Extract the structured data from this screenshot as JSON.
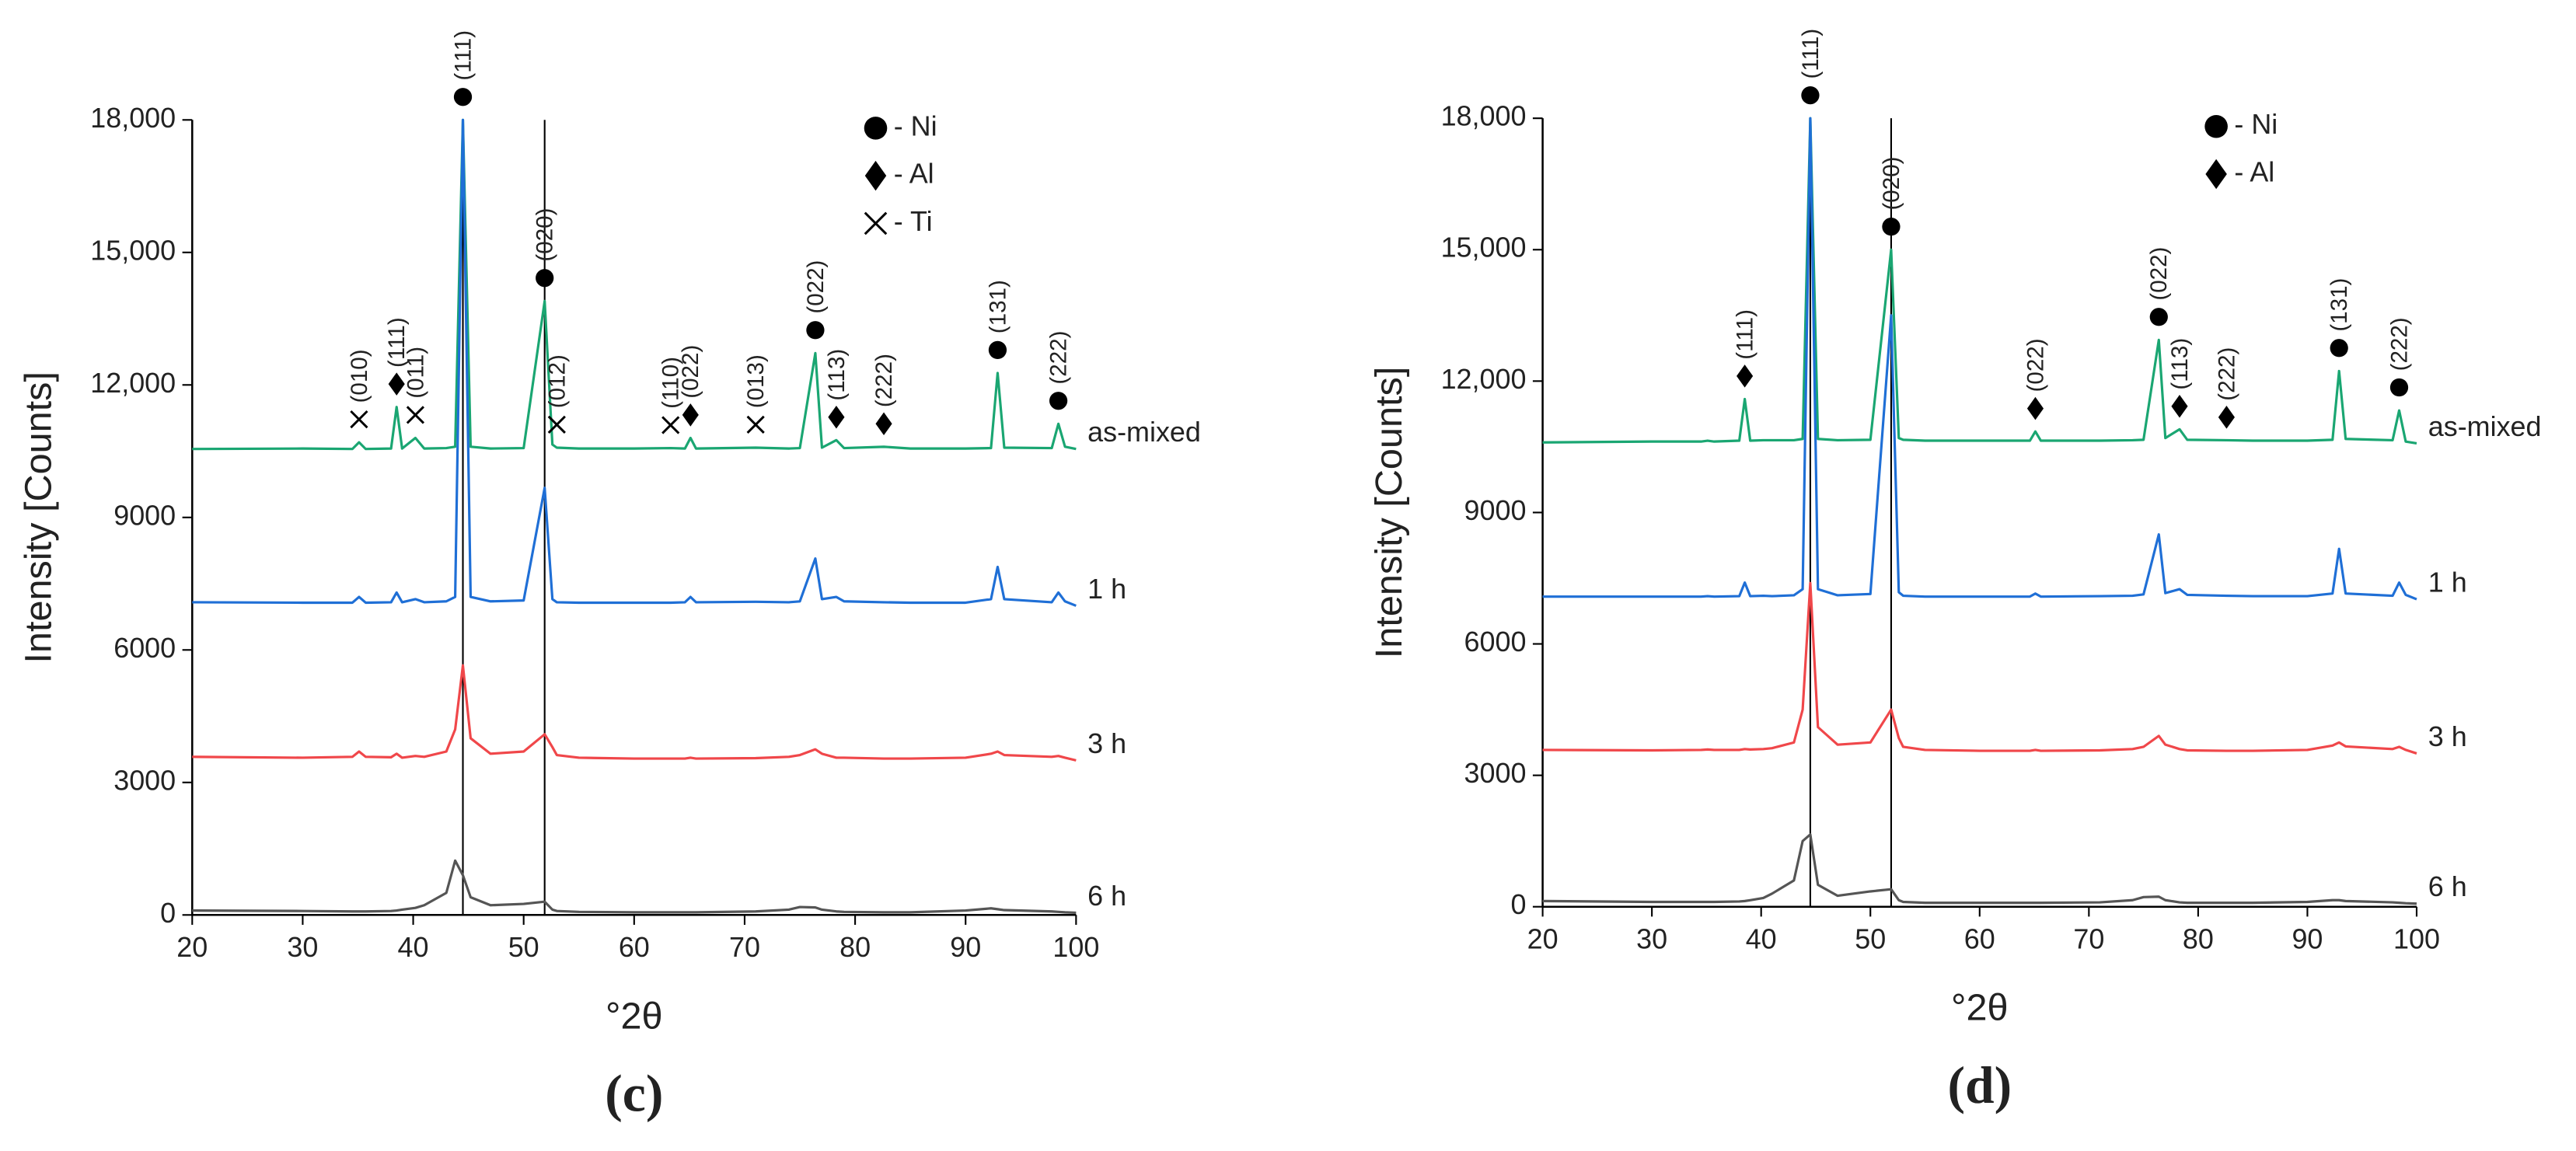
{
  "chart_data": [
    {
      "type": "line",
      "caption": "(c)",
      "xlabel": "°2θ",
      "ylabel": "Intensity [Counts]",
      "xlim": [
        20,
        100
      ],
      "xticks": [
        20,
        30,
        40,
        50,
        60,
        70,
        80,
        90,
        100
      ],
      "ylim": [
        0,
        18000
      ],
      "yticks": [
        0,
        3000,
        6000,
        9000,
        {
          "value": 12000,
          "label": "12,000"
        },
        {
          "value": 15000,
          "label": "15,000"
        },
        {
          "value": 18000,
          "label": "18,000"
        }
      ],
      "reference_lines": [
        44.5,
        51.9
      ],
      "x": [
        20,
        30,
        34.5,
        35.1,
        35.7,
        38,
        38.5,
        39,
        40.2,
        41,
        43,
        43.8,
        44.5,
        45.2,
        47,
        50,
        51.9,
        52.6,
        53,
        55,
        60,
        63.3,
        64.6,
        65.1,
        65.6,
        71,
        74,
        75,
        76.4,
        77,
        78.3,
        79,
        82.6,
        85,
        90,
        92.3,
        92.9,
        93.5,
        97.8,
        98.4,
        99,
        100
      ],
      "series": [
        {
          "name": "as-mixed",
          "color": "#1aa672",
          "values": [
            10550,
            10560,
            10550,
            10700,
            10550,
            10560,
            11500,
            10560,
            10800,
            10560,
            10570,
            10600,
            18000,
            10600,
            10560,
            10570,
            13900,
            10650,
            10580,
            10560,
            10560,
            10570,
            10560,
            10800,
            10560,
            10580,
            10560,
            10570,
            12720,
            10580,
            10750,
            10570,
            10600,
            10560,
            10560,
            10570,
            12270,
            10580,
            10570,
            11120,
            10600,
            10550
          ]
        },
        {
          "name": "1 h",
          "color": "#1f6fd6",
          "values": [
            7080,
            7070,
            7070,
            7200,
            7070,
            7080,
            7300,
            7080,
            7150,
            7080,
            7100,
            7200,
            18000,
            7200,
            7100,
            7120,
            9670,
            7150,
            7080,
            7070,
            7070,
            7070,
            7080,
            7200,
            7080,
            7090,
            7080,
            7100,
            8070,
            7150,
            7200,
            7100,
            7080,
            7070,
            7070,
            7150,
            7880,
            7150,
            7080,
            7300,
            7100,
            7000
          ]
        },
        {
          "name": "3 h",
          "color": "#f0474a",
          "values": [
            3580,
            3560,
            3580,
            3700,
            3580,
            3570,
            3650,
            3560,
            3600,
            3580,
            3700,
            4200,
            5650,
            4000,
            3650,
            3700,
            4090,
            3800,
            3620,
            3560,
            3540,
            3540,
            3540,
            3560,
            3540,
            3550,
            3580,
            3620,
            3750,
            3650,
            3560,
            3560,
            3540,
            3540,
            3560,
            3650,
            3700,
            3620,
            3580,
            3600,
            3560,
            3500
          ]
        },
        {
          "name": "6 h",
          "color": "#555555",
          "values": [
            100,
            90,
            80,
            80,
            80,
            90,
            100,
            120,
            160,
            220,
            500,
            1230,
            900,
            400,
            220,
            250,
            300,
            120,
            90,
            70,
            60,
            60,
            60,
            60,
            60,
            80,
            120,
            180,
            170,
            120,
            80,
            70,
            60,
            60,
            100,
            150,
            130,
            110,
            80,
            70,
            60,
            50
          ]
        }
      ],
      "legend": [
        {
          "label": "- Ni",
          "marker": "circle"
        },
        {
          "label": "- Al",
          "marker": "diamond"
        },
        {
          "label": "- Ti",
          "marker": "cross"
        }
      ],
      "annotations": [
        {
          "label": "(010)",
          "marker": "cross",
          "x": 35.1
        },
        {
          "label": "(111)",
          "marker": "diamond",
          "x": 38.5
        },
        {
          "label": "(011)",
          "marker": "cross",
          "x": 40.2
        },
        {
          "label": "(111)",
          "marker": "circle",
          "x": 44.5
        },
        {
          "label": "(020)",
          "marker": "circle",
          "x": 51.9
        },
        {
          "label": "(012)",
          "marker": "cross",
          "x": 53
        },
        {
          "label": "(110)",
          "marker": "cross",
          "x": 63.3
        },
        {
          "label": "(022)",
          "marker": "diamond",
          "x": 65.1
        },
        {
          "label": "(013)",
          "marker": "cross",
          "x": 71
        },
        {
          "label": "(022)",
          "marker": "circle",
          "x": 76.4
        },
        {
          "label": "(113)",
          "marker": "diamond",
          "x": 78.3
        },
        {
          "label": "(222)",
          "marker": "diamond",
          "x": 82.6
        },
        {
          "label": "(131)",
          "marker": "circle",
          "x": 92.9
        },
        {
          "label": "(222)",
          "marker": "circle",
          "x": 98.4
        }
      ]
    },
    {
      "type": "line",
      "caption": "(d)",
      "xlabel": "°2θ",
      "ylabel": "Intensity [Counts]",
      "xlim": [
        20,
        100
      ],
      "xticks": [
        20,
        30,
        40,
        50,
        60,
        70,
        80,
        90,
        100
      ],
      "ylim": [
        0,
        18000
      ],
      "yticks": [
        0,
        3000,
        6000,
        9000,
        {
          "value": 12000,
          "label": "12,000"
        },
        {
          "value": 15000,
          "label": "15,000"
        },
        {
          "value": 18000,
          "label": "18,000"
        }
      ],
      "reference_lines": [
        44.5,
        51.9
      ],
      "x": [
        20,
        30,
        34.5,
        35.1,
        35.7,
        38,
        38.5,
        39,
        40.2,
        41,
        43,
        43.8,
        44.5,
        45.2,
        47,
        50,
        51.9,
        52.6,
        53,
        55,
        60,
        63.3,
        64.6,
        65.1,
        65.6,
        71,
        74,
        75,
        76.4,
        77,
        78.3,
        79,
        82.6,
        85,
        90,
        92.3,
        92.9,
        93.5,
        97.8,
        98.4,
        99,
        100
      ],
      "series": [
        {
          "name": "as-mixed",
          "color": "#1aa672",
          "values": [
            10600,
            10620,
            10620,
            10640,
            10620,
            10640,
            11590,
            10640,
            10650,
            10650,
            10650,
            10680,
            18000,
            10680,
            10650,
            10660,
            15000,
            10700,
            10660,
            10640,
            10640,
            10640,
            10640,
            10850,
            10640,
            10640,
            10650,
            10660,
            12940,
            10700,
            10900,
            10660,
            10650,
            10640,
            10640,
            10660,
            12230,
            10680,
            10650,
            11330,
            10620,
            10580
          ]
        },
        {
          "name": "1 h",
          "color": "#1f6fd6",
          "values": [
            7080,
            7080,
            7080,
            7090,
            7080,
            7090,
            7400,
            7090,
            7100,
            7090,
            7110,
            7250,
            18000,
            7250,
            7110,
            7140,
            13500,
            7180,
            7100,
            7080,
            7080,
            7080,
            7080,
            7150,
            7080,
            7090,
            7100,
            7130,
            8500,
            7160,
            7250,
            7120,
            7100,
            7090,
            7090,
            7150,
            8170,
            7150,
            7100,
            7400,
            7120,
            7020
          ]
        },
        {
          "name": "3 h",
          "color": "#f0474a",
          "values": [
            3580,
            3570,
            3580,
            3590,
            3580,
            3580,
            3600,
            3590,
            3600,
            3620,
            3750,
            4500,
            7390,
            4100,
            3700,
            3750,
            4500,
            3850,
            3650,
            3580,
            3560,
            3560,
            3560,
            3580,
            3560,
            3570,
            3600,
            3650,
            3900,
            3700,
            3600,
            3570,
            3560,
            3560,
            3580,
            3680,
            3750,
            3660,
            3600,
            3650,
            3580,
            3500
          ]
        },
        {
          "name": "6 h",
          "color": "#555555",
          "values": [
            130,
            110,
            110,
            110,
            110,
            120,
            130,
            150,
            200,
            300,
            600,
            1500,
            1650,
            500,
            250,
            350,
            400,
            150,
            110,
            90,
            90,
            90,
            90,
            90,
            90,
            100,
            150,
            220,
            230,
            150,
            100,
            90,
            90,
            90,
            110,
            150,
            150,
            130,
            100,
            90,
            80,
            70
          ]
        }
      ],
      "legend": [
        {
          "label": "- Ni",
          "marker": "circle"
        },
        {
          "label": "- Al",
          "marker": "diamond"
        }
      ],
      "annotations": [
        {
          "label": "(111)",
          "marker": "diamond",
          "x": 38.5
        },
        {
          "label": "(111)",
          "marker": "circle",
          "x": 44.5
        },
        {
          "label": "(020)",
          "marker": "circle",
          "x": 51.9
        },
        {
          "label": "(022)",
          "marker": "diamond",
          "x": 65.1
        },
        {
          "label": "(022)",
          "marker": "circle",
          "x": 76.4
        },
        {
          "label": "(113)",
          "marker": "diamond",
          "x": 78.3
        },
        {
          "label": "(222)",
          "marker": "diamond",
          "x": 82.6
        },
        {
          "label": "(131)",
          "marker": "circle",
          "x": 92.9
        },
        {
          "label": "(222)",
          "marker": "circle",
          "x": 98.4
        }
      ]
    }
  ]
}
